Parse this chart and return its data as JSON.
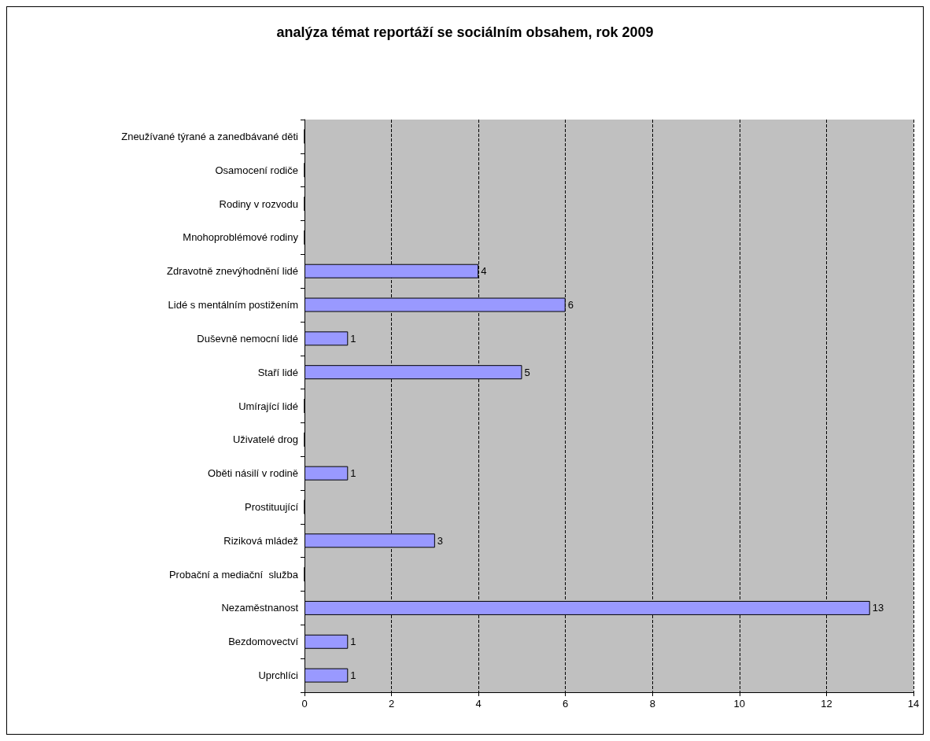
{
  "chart_data": {
    "type": "bar",
    "orientation": "horizontal",
    "title": "analýza témat reportáží se sociálním obsahem, rok 2009",
    "categories": [
      "Zneužívané týrané a zanedbávané děti",
      "Osamocení rodiče",
      "Rodiny v rozvodu",
      "Mnohoproblémové rodiny",
      "Zdravotně znevýhodnění lidé",
      "Lidé s mentálním postižením",
      "Duševně nemocní lidé",
      "Staří lidé",
      "Umírající lidé",
      "Uživatelé drog",
      "Oběti násilí v rodině",
      "Prostituující",
      "Riziková mládež",
      "Probační a mediační  služba",
      "Nezaměstnanost",
      "Bezdomovectví",
      "Uprchlíci"
    ],
    "values": [
      0,
      0,
      0,
      0,
      4,
      6,
      1,
      5,
      0,
      0,
      1,
      0,
      3,
      0,
      13,
      1,
      1
    ],
    "value_labels": [
      null,
      null,
      null,
      null,
      "4",
      "6",
      "1",
      "5",
      null,
      null,
      "1",
      null,
      "3",
      null,
      "13",
      "1",
      "1"
    ],
    "color": "#9999ff",
    "xlim": [
      0,
      14
    ],
    "xticks": [
      0,
      2,
      4,
      6,
      8,
      10,
      12,
      14
    ],
    "grid": "x"
  }
}
